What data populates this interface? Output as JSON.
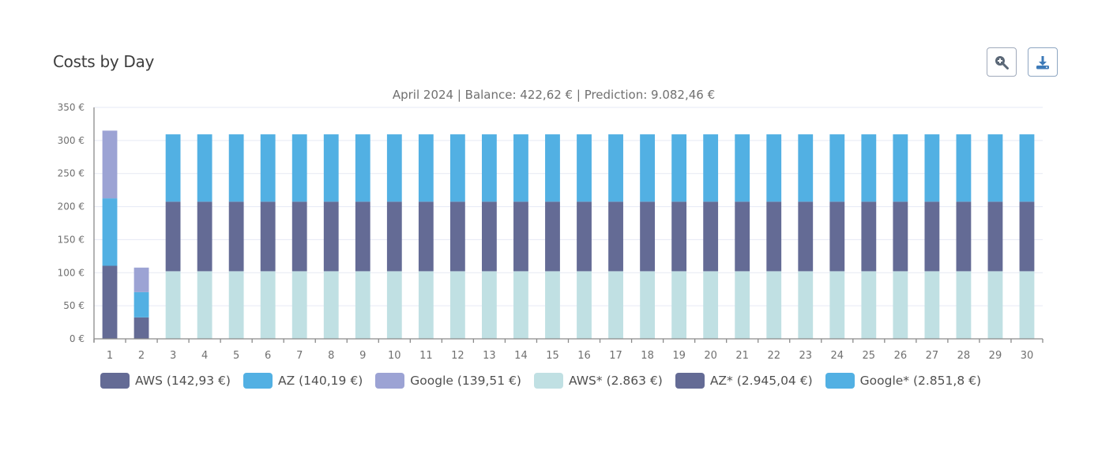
{
  "header": {
    "title": "Costs by Day",
    "zoom_button_icon": "zoom-in-icon",
    "download_button_icon": "download-icon"
  },
  "chart_data": {
    "type": "bar",
    "stacked": true,
    "title": "Costs by Day",
    "subtitle": "April 2024 | Balance: 422,62 € | Prediction: 9.082,46 €",
    "xlabel": "",
    "ylabel": "",
    "ylim": [
      0,
      350
    ],
    "yticks": [
      0,
      50,
      100,
      150,
      200,
      250,
      300,
      350
    ],
    "ytick_labels": [
      "0 €",
      "50 €",
      "100 €",
      "150 €",
      "200 €",
      "250 €",
      "300 €",
      "350 €"
    ],
    "grid": true,
    "legend_position": "bottom",
    "categories": [
      "1",
      "2",
      "3",
      "4",
      "5",
      "6",
      "7",
      "8",
      "9",
      "10",
      "11",
      "12",
      "13",
      "14",
      "15",
      "16",
      "17",
      "18",
      "19",
      "20",
      "21",
      "22",
      "23",
      "24",
      "25",
      "26",
      "27",
      "28",
      "29",
      "30"
    ],
    "series": [
      {
        "name": "AWS",
        "legend_label": "AWS (142,93 €)",
        "color": "#646b95",
        "values": [
          110.5,
          32.43,
          0,
          0,
          0,
          0,
          0,
          0,
          0,
          0,
          0,
          0,
          0,
          0,
          0,
          0,
          0,
          0,
          0,
          0,
          0,
          0,
          0,
          0,
          0,
          0,
          0,
          0,
          0,
          0
        ]
      },
      {
        "name": "AZ",
        "legend_label": "AZ (140,19 €)",
        "color": "#52b0e3",
        "values": [
          102.0,
          38.19,
          0,
          0,
          0,
          0,
          0,
          0,
          0,
          0,
          0,
          0,
          0,
          0,
          0,
          0,
          0,
          0,
          0,
          0,
          0,
          0,
          0,
          0,
          0,
          0,
          0,
          0,
          0,
          0
        ]
      },
      {
        "name": "Google",
        "legend_label": "Google (139,51 €)",
        "color": "#9ca3d4",
        "values": [
          102.4,
          37.11,
          0,
          0,
          0,
          0,
          0,
          0,
          0,
          0,
          0,
          0,
          0,
          0,
          0,
          0,
          0,
          0,
          0,
          0,
          0,
          0,
          0,
          0,
          0,
          0,
          0,
          0,
          0,
          0
        ]
      },
      {
        "name": "AWS*",
        "legend_label": "AWS* (2.863 €)",
        "color": "#c0e0e3",
        "values": [
          0,
          0,
          102.25,
          102.25,
          102.25,
          102.25,
          102.25,
          102.25,
          102.25,
          102.25,
          102.25,
          102.25,
          102.25,
          102.25,
          102.25,
          102.25,
          102.25,
          102.25,
          102.25,
          102.25,
          102.25,
          102.25,
          102.25,
          102.25,
          102.25,
          102.25,
          102.25,
          102.25,
          102.25,
          102.25
        ]
      },
      {
        "name": "AZ*",
        "legend_label": "AZ* (2.945,04 €)",
        "color": "#646b95",
        "values": [
          0,
          0,
          105.18,
          105.18,
          105.18,
          105.18,
          105.18,
          105.18,
          105.18,
          105.18,
          105.18,
          105.18,
          105.18,
          105.18,
          105.18,
          105.18,
          105.18,
          105.18,
          105.18,
          105.18,
          105.18,
          105.18,
          105.18,
          105.18,
          105.18,
          105.18,
          105.18,
          105.18,
          105.18,
          105.18
        ]
      },
      {
        "name": "Google*",
        "legend_label": "Google* (2.851,8 €)",
        "color": "#52b0e3",
        "values": [
          0,
          0,
          101.85,
          101.85,
          101.85,
          101.85,
          101.85,
          101.85,
          101.85,
          101.85,
          101.85,
          101.85,
          101.85,
          101.85,
          101.85,
          101.85,
          101.85,
          101.85,
          101.85,
          101.85,
          101.85,
          101.85,
          101.85,
          101.85,
          101.85,
          101.85,
          101.85,
          101.85,
          101.85,
          101.85
        ]
      }
    ]
  }
}
